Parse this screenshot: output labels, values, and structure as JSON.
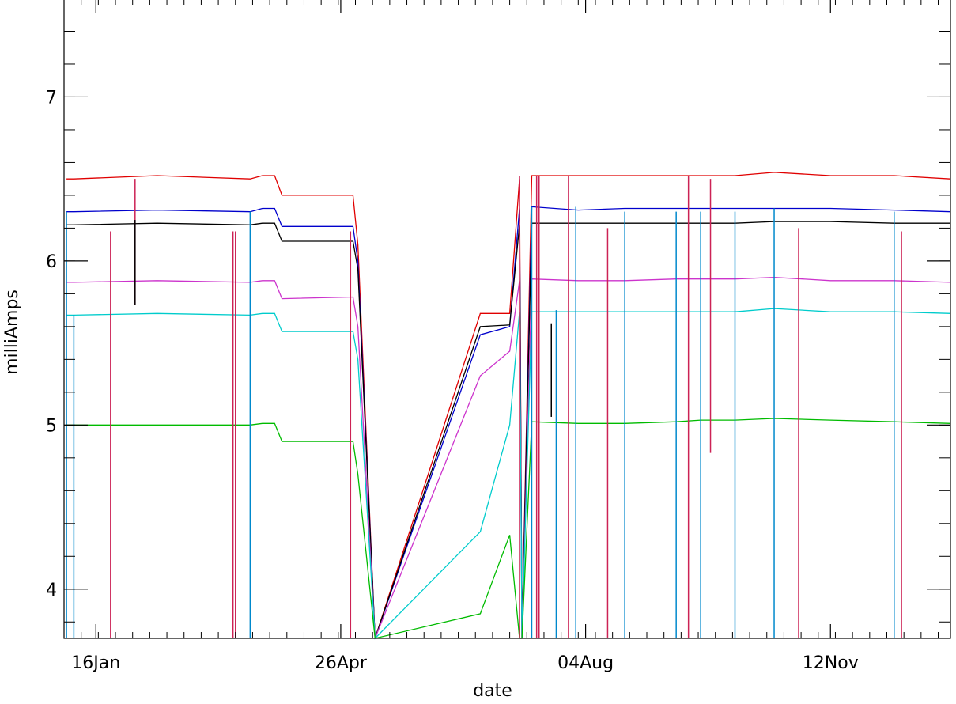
{
  "chart_data": {
    "type": "line",
    "title": "",
    "xlabel": "date",
    "ylabel": "milliAmps",
    "xlim": [
      "2019-01-03",
      "2019-12-31"
    ],
    "ylim": [
      3.7,
      7.6
    ],
    "grid": false,
    "x_ticks": [
      {
        "date": "2019-01-16",
        "label": "16Jan"
      },
      {
        "date": "2019-04-26",
        "label": "26Apr"
      },
      {
        "date": "2019-08-04",
        "label": "04Aug"
      },
      {
        "date": "2019-11-12",
        "label": "12Nov"
      }
    ],
    "y_ticks": [
      {
        "value": 4,
        "label": "4"
      },
      {
        "value": 5,
        "label": "5"
      },
      {
        "value": 6,
        "label": "6"
      },
      {
        "value": 7,
        "label": "7"
      }
    ],
    "series": [
      {
        "color": "#e00000",
        "x": [
          "2019-01-04",
          "2019-01-07",
          "2019-02-10",
          "2019-03-20",
          "2019-03-25",
          "2019-03-30",
          "2019-04-02",
          "2019-05-01",
          "2019-05-03",
          "2019-05-10",
          "2019-06-22",
          "2019-07-04",
          "2019-07-08",
          "2019-07-09",
          "2019-07-13",
          "2019-08-01",
          "2019-08-20",
          "2019-09-10",
          "2019-09-20",
          "2019-10-04",
          "2019-10-20",
          "2019-11-12",
          "2019-12-08",
          "2019-12-31"
        ],
        "y": [
          6.5,
          6.5,
          6.52,
          6.5,
          6.52,
          6.52,
          6.4,
          6.4,
          6.1,
          3.7,
          5.68,
          5.68,
          6.5,
          3.7,
          6.52,
          6.52,
          6.52,
          6.52,
          6.52,
          6.52,
          6.54,
          6.52,
          6.52,
          6.5
        ]
      },
      {
        "color": "#0000cc",
        "x": [
          "2019-01-04",
          "2019-01-07",
          "2019-02-10",
          "2019-03-20",
          "2019-03-25",
          "2019-03-30",
          "2019-04-02",
          "2019-05-01",
          "2019-05-03",
          "2019-05-10",
          "2019-06-22",
          "2019-07-04",
          "2019-07-08",
          "2019-07-09",
          "2019-07-13",
          "2019-08-01",
          "2019-08-20",
          "2019-09-10",
          "2019-09-20",
          "2019-10-04",
          "2019-10-20",
          "2019-11-12",
          "2019-12-08",
          "2019-12-31"
        ],
        "y": [
          6.3,
          6.3,
          6.31,
          6.3,
          6.32,
          6.32,
          6.21,
          6.21,
          6.0,
          3.7,
          5.55,
          5.6,
          6.32,
          3.7,
          6.33,
          6.31,
          6.32,
          6.32,
          6.32,
          6.32,
          6.32,
          6.32,
          6.31,
          6.3
        ]
      },
      {
        "color": "#000000",
        "x": [
          "2019-01-04",
          "2019-01-07",
          "2019-02-10",
          "2019-03-20",
          "2019-03-25",
          "2019-03-30",
          "2019-04-02",
          "2019-05-01",
          "2019-05-03",
          "2019-05-10",
          "2019-06-22",
          "2019-07-04",
          "2019-07-08",
          "2019-07-09",
          "2019-07-13",
          "2019-08-01",
          "2019-08-20",
          "2019-09-10",
          "2019-09-20",
          "2019-10-04",
          "2019-10-20",
          "2019-11-12",
          "2019-12-08",
          "2019-12-31"
        ],
        "y": [
          6.22,
          6.22,
          6.23,
          6.22,
          6.23,
          6.23,
          6.12,
          6.12,
          5.95,
          3.7,
          5.6,
          5.61,
          6.22,
          3.7,
          6.23,
          6.23,
          6.23,
          6.23,
          6.23,
          6.23,
          6.24,
          6.24,
          6.23,
          6.23
        ]
      },
      {
        "color": "#cc33cc",
        "x": [
          "2019-01-04",
          "2019-01-07",
          "2019-02-10",
          "2019-03-20",
          "2019-03-25",
          "2019-03-30",
          "2019-04-02",
          "2019-05-01",
          "2019-05-03",
          "2019-05-10",
          "2019-06-22",
          "2019-07-04",
          "2019-07-08",
          "2019-07-09",
          "2019-07-13",
          "2019-08-01",
          "2019-08-20",
          "2019-09-10",
          "2019-09-20",
          "2019-10-04",
          "2019-10-20",
          "2019-11-12",
          "2019-12-08",
          "2019-12-31"
        ],
        "y": [
          5.87,
          5.87,
          5.88,
          5.87,
          5.88,
          5.88,
          5.77,
          5.78,
          5.6,
          3.7,
          5.3,
          5.45,
          5.88,
          3.7,
          5.89,
          5.88,
          5.88,
          5.89,
          5.89,
          5.89,
          5.9,
          5.88,
          5.88,
          5.87
        ]
      },
      {
        "color": "#00cccc",
        "x": [
          "2019-01-04",
          "2019-01-07",
          "2019-02-10",
          "2019-03-20",
          "2019-03-25",
          "2019-03-30",
          "2019-04-02",
          "2019-05-01",
          "2019-05-03",
          "2019-05-10",
          "2019-06-22",
          "2019-07-04",
          "2019-07-08",
          "2019-07-09",
          "2019-07-13",
          "2019-08-01",
          "2019-08-20",
          "2019-09-10",
          "2019-09-20",
          "2019-10-04",
          "2019-10-20",
          "2019-11-12",
          "2019-12-08",
          "2019-12-31"
        ],
        "y": [
          5.67,
          5.67,
          5.68,
          5.67,
          5.68,
          5.68,
          5.57,
          5.57,
          5.4,
          3.7,
          4.35,
          5.0,
          5.69,
          3.7,
          5.69,
          5.69,
          5.69,
          5.69,
          5.69,
          5.69,
          5.71,
          5.69,
          5.69,
          5.68
        ]
      },
      {
        "color": "#00bb00",
        "x": [
          "2019-01-04",
          "2019-01-07",
          "2019-02-10",
          "2019-03-20",
          "2019-03-25",
          "2019-03-30",
          "2019-04-02",
          "2019-05-01",
          "2019-05-03",
          "2019-05-10",
          "2019-06-22",
          "2019-07-04",
          "2019-07-08",
          "2019-07-09",
          "2019-07-13",
          "2019-08-01",
          "2019-08-20",
          "2019-09-10",
          "2019-09-20",
          "2019-10-04",
          "2019-10-20",
          "2019-11-12",
          "2019-12-08",
          "2019-12-31"
        ],
        "y": [
          5.0,
          5.0,
          5.0,
          5.0,
          5.01,
          5.01,
          4.9,
          4.9,
          4.7,
          3.7,
          3.85,
          4.33,
          3.7,
          3.7,
          5.02,
          5.01,
          5.01,
          5.02,
          5.03,
          5.03,
          5.04,
          5.03,
          5.02,
          5.01
        ]
      }
    ],
    "spikes": [
      {
        "color": "#cc2255",
        "date": "2019-01-22",
        "from": 3.7,
        "to": 6.18
      },
      {
        "color": "#cc2255",
        "date": "2019-02-01",
        "from": 5.73,
        "to": 6.5
      },
      {
        "color": "#cc2255",
        "date": "2019-03-13",
        "from": 3.7,
        "to": 6.18
      },
      {
        "color": "#cc2255",
        "date": "2019-03-14",
        "from": 3.7,
        "to": 6.18
      },
      {
        "color": "#cc2255",
        "date": "2019-04-30",
        "from": 3.7,
        "to": 6.18
      },
      {
        "color": "#cc2255",
        "date": "2019-07-08",
        "from": 3.7,
        "to": 6.52
      },
      {
        "color": "#cc2255",
        "date": "2019-07-15",
        "from": 3.7,
        "to": 6.52
      },
      {
        "color": "#cc2255",
        "date": "2019-07-16",
        "from": 3.7,
        "to": 6.52
      },
      {
        "color": "#cc2255",
        "date": "2019-07-28",
        "from": 3.7,
        "to": 6.52
      },
      {
        "color": "#cc2255",
        "date": "2019-08-13",
        "from": 3.7,
        "to": 6.2
      },
      {
        "color": "#cc2255",
        "date": "2019-09-15",
        "from": 3.7,
        "to": 6.52
      },
      {
        "color": "#cc2255",
        "date": "2019-09-24",
        "from": 4.83,
        "to": 6.5
      },
      {
        "color": "#cc2255",
        "date": "2019-10-30",
        "from": 3.7,
        "to": 6.2
      },
      {
        "color": "#cc2255",
        "date": "2019-12-11",
        "from": 3.7,
        "to": 6.18
      },
      {
        "color": "#000000",
        "date": "2019-02-01",
        "from": 5.73,
        "to": 6.25
      },
      {
        "color": "#000000",
        "date": "2019-07-21",
        "from": 5.05,
        "to": 5.62
      },
      {
        "color": "#0088cc",
        "date": "2019-01-04",
        "from": 3.7,
        "to": 6.3
      },
      {
        "color": "#0088cc",
        "date": "2019-01-07",
        "from": 3.7,
        "to": 5.67
      },
      {
        "color": "#0088cc",
        "date": "2019-03-20",
        "from": 3.7,
        "to": 6.3
      },
      {
        "color": "#0088cc",
        "date": "2019-07-13",
        "from": 3.7,
        "to": 6.33
      },
      {
        "color": "#0088cc",
        "date": "2019-07-23",
        "from": 3.7,
        "to": 5.7
      },
      {
        "color": "#0088cc",
        "date": "2019-07-31",
        "from": 3.7,
        "to": 6.33
      },
      {
        "color": "#0088cc",
        "date": "2019-08-20",
        "from": 3.7,
        "to": 6.3
      },
      {
        "color": "#0088cc",
        "date": "2019-09-10",
        "from": 3.7,
        "to": 6.3
      },
      {
        "color": "#0088cc",
        "date": "2019-09-20",
        "from": 3.7,
        "to": 6.3
      },
      {
        "color": "#0088cc",
        "date": "2019-10-04",
        "from": 3.7,
        "to": 6.3
      },
      {
        "color": "#0088cc",
        "date": "2019-10-20",
        "from": 3.7,
        "to": 6.32
      },
      {
        "color": "#0088cc",
        "date": "2019-12-08",
        "from": 3.7,
        "to": 6.3
      }
    ]
  }
}
